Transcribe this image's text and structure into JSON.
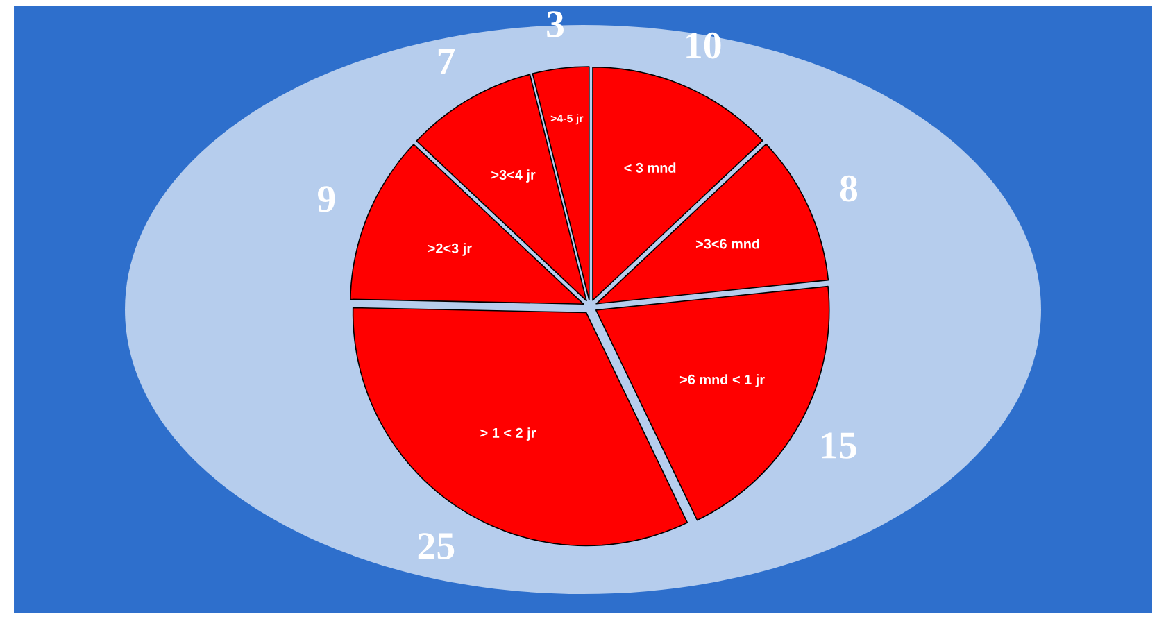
{
  "chart_data": {
    "type": "pie",
    "categories": [
      "< 3 mnd",
      ">3<6 mnd",
      ">6 mnd < 1 jr",
      "> 1 < 2 jr",
      ">2<3 jr",
      ">3<4 jr",
      ">4-5 jr"
    ],
    "values": [
      10,
      8,
      15,
      25,
      9,
      7,
      3
    ],
    "colors": [
      "#ff0000",
      "#ff0000",
      "#ff0000",
      "#ff0000",
      "#ff0000",
      "#ff0000",
      "#ff0000"
    ],
    "data_labels": true
  }
}
